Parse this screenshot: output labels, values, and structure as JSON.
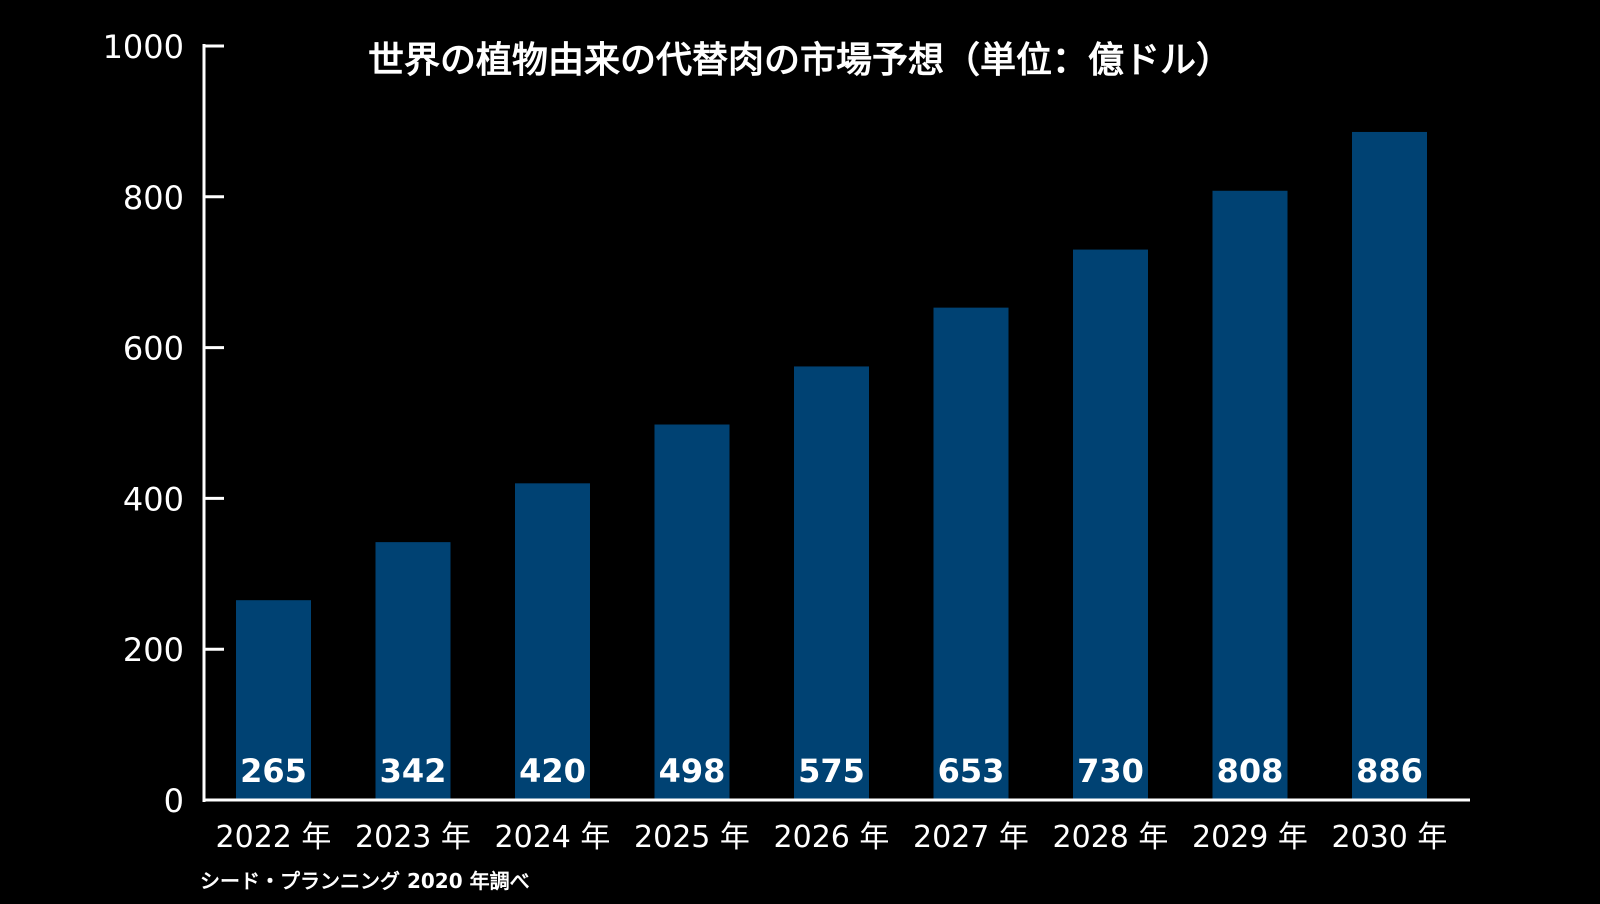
{
  "chart_data": {
    "type": "bar",
    "title": "世界の植物由来の代替肉の市場予想（単位：億ドル）",
    "categories": [
      "2022 年",
      "2023 年",
      "2024 年",
      "2025 年",
      "2026 年",
      "2027 年",
      "2028 年",
      "2029 年",
      "2030 年"
    ],
    "values": [
      265,
      342,
      420,
      498,
      575,
      653,
      730,
      808,
      886
    ],
    "data_labels": [
      "265",
      "342",
      "420",
      "498",
      "575",
      "653",
      "730",
      "808",
      "886"
    ],
    "ylim": [
      0,
      1000
    ],
    "yticks": [
      0,
      200,
      400,
      600,
      800,
      1000
    ],
    "ytick_labels": [
      "0",
      "200",
      "400",
      "600",
      "800",
      "1000"
    ],
    "grid": false,
    "bar_color": "#004273",
    "background_color": "#000000",
    "text_color": "#ffffff",
    "source": "シード・プランニング 2020 年調べ"
  }
}
